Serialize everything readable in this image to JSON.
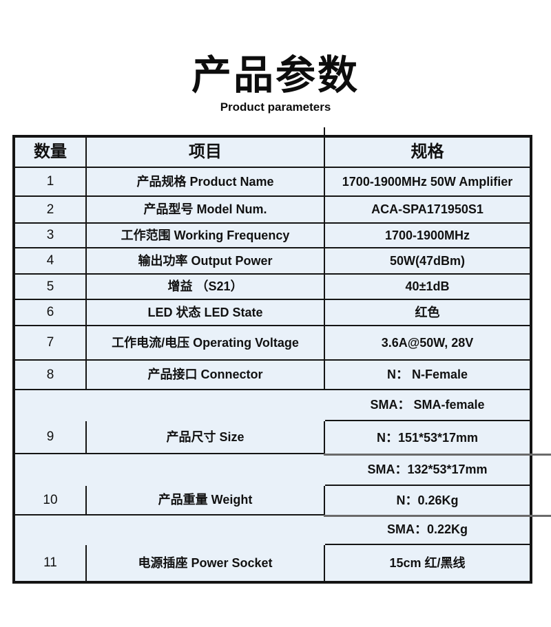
{
  "page": {
    "title_zh": "产品参数",
    "title_en": "Product parameters"
  },
  "table": {
    "columns": {
      "qty": "数量",
      "item": "项目",
      "spec": "规格"
    },
    "rows": [
      {
        "num": "1",
        "item": "产品规格  Product Name",
        "spec": "1700-1900MHz 50W Amplifier"
      },
      {
        "num": "2",
        "item": "产品型号  Model Num.",
        "spec": "ACA-SPA171950S1"
      },
      {
        "num": "3",
        "item": "工作范围 Working Frequency",
        "spec": "1700-1900MHz"
      },
      {
        "num": "4",
        "item": "输出功率 Output Power",
        "spec": "50W(47dBm)"
      },
      {
        "num": "5",
        "item": "增益 （S21）",
        "spec": "40±1dB"
      },
      {
        "num": "6",
        "item": "LED 状态  LED State",
        "spec": "红色"
      },
      {
        "num": "7",
        "item": "工作电流/电压  Operating Voltage",
        "spec": "3.6A@50W, 28V"
      },
      {
        "num": "8",
        "item": "产品接口 Connector",
        "specs": [
          "N： N-Female",
          "SMA： SMA-female"
        ]
      },
      {
        "num": "9",
        "item": "产品尺寸 Size",
        "specs": [
          "N：151*53*17mm",
          "SMA：132*53*17mm"
        ]
      },
      {
        "num": "10",
        "item": "产品重量 Weight",
        "specs": [
          "N：0.26Kg",
          "SMA：0.22Kg"
        ]
      },
      {
        "num": "11",
        "item": "电源插座 Power Socket",
        "spec": "15cm 红/黑线"
      }
    ]
  },
  "colors": {
    "table_bg": "#e9f1f9",
    "border": "#141414",
    "sub_divider_gray": "#6a6a6a",
    "text": "#111111"
  }
}
